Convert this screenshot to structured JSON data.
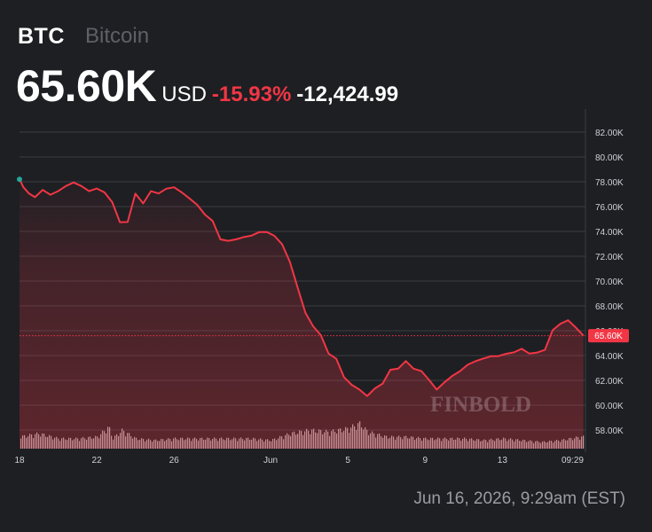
{
  "header": {
    "symbol": "BTC",
    "name": "Bitcoin",
    "price": "65.60K",
    "currency": "USD",
    "change_pct": "-15.93%",
    "change_abs": "-12,424.99"
  },
  "footer": {
    "date": "Jun 16, 2026, 9:29am (EST)"
  },
  "watermark": "FINBOLD",
  "colors": {
    "line": "#f23645",
    "start_marker": "#26a69a",
    "grid": "#3a3c42",
    "volume": "#cfcfcf",
    "price_label_bg": "#f23645"
  },
  "chart_data": {
    "type": "area",
    "x_tick_labels": [
      "18",
      "22",
      "26",
      "Jun",
      "5",
      "9",
      "13",
      "09:29"
    ],
    "x_tick_days": [
      0,
      4,
      8,
      13,
      17,
      21,
      25,
      29
    ],
    "x_range_days": [
      0,
      29.3
    ],
    "y_tick_labels": [
      "58.00K",
      "60.00K",
      "62.00K",
      "64.00K",
      "66.00K",
      "68.00K",
      "70.00K",
      "72.00K",
      "74.00K",
      "76.00K",
      "78.00K",
      "80.00K",
      "82.00K"
    ],
    "y_range": [
      56500,
      83500
    ],
    "current_price_label": "65.60K",
    "current_price": 65600,
    "grid": true,
    "series": [
      {
        "x_days": [
          0,
          0.2,
          0.5,
          0.8,
          1.2,
          1.6,
          2.0,
          2.4,
          2.8,
          3.2,
          3.6,
          4.0,
          4.4,
          4.8,
          5.2,
          5.6,
          6.0,
          6.4,
          6.8,
          7.2,
          7.6,
          8.0,
          8.4,
          8.8,
          9.2,
          9.6,
          10.0,
          10.4,
          10.8,
          11.2,
          11.6,
          12.0,
          12.4,
          12.8,
          13.2,
          13.6,
          14.0,
          14.4,
          14.8,
          15.2,
          15.6,
          16.0,
          16.4,
          16.8,
          17.2,
          17.6,
          18.0,
          18.4,
          18.8,
          19.2,
          19.6,
          20.0,
          20.4,
          20.8,
          21.2,
          21.6,
          22.0,
          22.4,
          22.8,
          23.2,
          23.6,
          24.0,
          24.4,
          24.8,
          25.2,
          25.6,
          26.0,
          26.4,
          26.8,
          27.2,
          27.6,
          28.0,
          28.4,
          28.8,
          29.2
        ],
        "y": [
          78200,
          77600,
          77000,
          76800,
          77300,
          77000,
          77200,
          77700,
          77900,
          77700,
          77200,
          77500,
          77100,
          76400,
          74700,
          74800,
          77000,
          76300,
          77200,
          77100,
          77400,
          77600,
          77100,
          76700,
          76100,
          75400,
          74800,
          73400,
          73200,
          73400,
          73500,
          73700,
          73900,
          74000,
          73600,
          73000,
          71500,
          69500,
          67400,
          66400,
          65600,
          64200,
          63700,
          62300,
          61600,
          61300,
          60700,
          61400,
          61700,
          62900,
          62900,
          63600,
          62900,
          62800,
          62000,
          61300,
          61800,
          62400,
          62700,
          63300,
          63500,
          63800,
          63900,
          64000,
          64100,
          64300,
          64500,
          64200,
          64200,
          64500,
          66000,
          66600,
          66800,
          66300,
          65600
        ]
      }
    ],
    "volume_series": {
      "x_days": [
        0,
        1,
        2,
        3,
        4,
        4.6,
        4.8,
        5.3,
        6,
        7,
        8,
        9,
        10,
        11,
        12,
        13,
        14,
        15,
        16,
        17,
        17.6,
        18,
        19,
        20,
        21,
        22,
        23,
        24,
        25,
        26,
        27,
        28,
        29
      ],
      "values": [
        0.35,
        0.45,
        0.3,
        0.3,
        0.35,
        0.65,
        0.3,
        0.55,
        0.3,
        0.25,
        0.3,
        0.3,
        0.3,
        0.3,
        0.3,
        0.25,
        0.45,
        0.55,
        0.5,
        0.6,
        0.75,
        0.5,
        0.35,
        0.35,
        0.3,
        0.3,
        0.3,
        0.25,
        0.3,
        0.25,
        0.2,
        0.25,
        0.35
      ]
    }
  }
}
